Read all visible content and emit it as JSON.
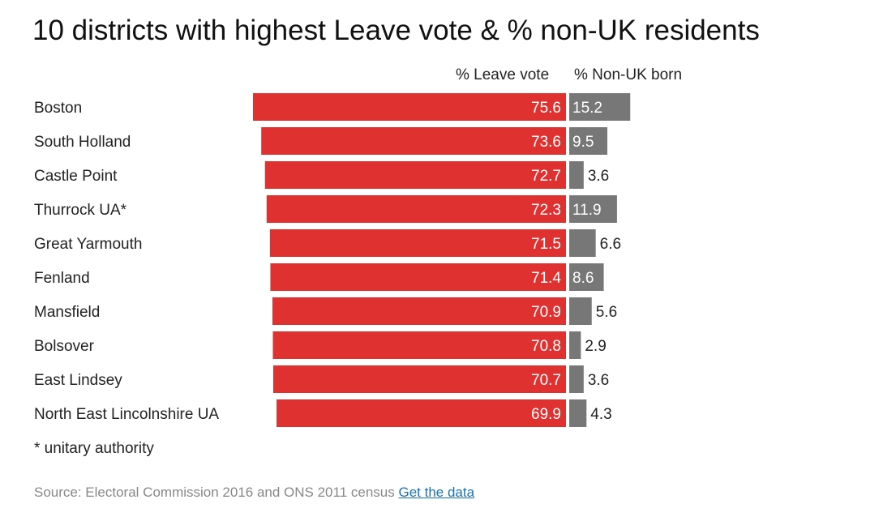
{
  "chart_data": {
    "type": "bar",
    "title": "10 districts with highest Leave vote & % non-UK residents",
    "categories": [
      "Boston",
      "South Holland",
      "Castle Point",
      "Thurrock UA*",
      "Great Yarmouth",
      "Fenland",
      "Mansfield",
      "Bolsover",
      "East Lindsey",
      "North East Lincolnshire UA"
    ],
    "series": [
      {
        "name": "% Leave vote",
        "color": "#e03131",
        "values": [
          75.6,
          73.6,
          72.7,
          72.3,
          71.5,
          71.4,
          70.9,
          70.8,
          70.7,
          69.9
        ]
      },
      {
        "name": "% Non-UK born",
        "color": "#777777",
        "values": [
          15.2,
          9.5,
          3.6,
          11.9,
          6.6,
          8.6,
          5.6,
          2.9,
          3.6,
          4.3
        ]
      }
    ],
    "grid": false,
    "footnote": "* unitary authority",
    "source": "Source: Electoral Commission 2016 and ONS 2011 census",
    "link": "Get the data"
  }
}
